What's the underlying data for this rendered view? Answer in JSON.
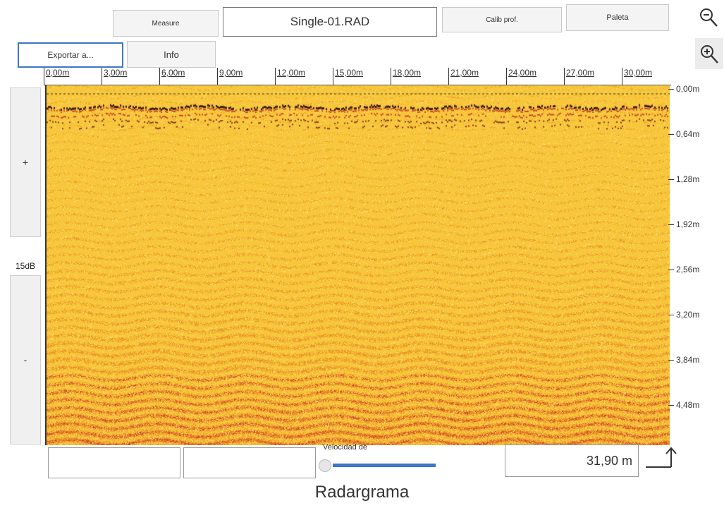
{
  "toolbar": {
    "measure_label": "Measure",
    "filename": "Single-01.RAD",
    "calib_label": "Calib prof.",
    "paleta_label": "Paleta",
    "export_label": "Exportar a...",
    "info_label": "Info"
  },
  "zoom": {
    "out_icon": "zoom-out-icon",
    "in_icon": "zoom-in-icon"
  },
  "x_axis": {
    "ticks": [
      "0,00m",
      "3,00m",
      "6,00m",
      "9,00m",
      "12,00m",
      "15,00m",
      "18,00m",
      "21,00m",
      "24,00m",
      "27,00m",
      "30,00m"
    ]
  },
  "y_axis": {
    "ticks": [
      "0,00m",
      "0,64m",
      "1,28m",
      "1,92m",
      "2,56m",
      "3,20m",
      "3,84m",
      "4,48m"
    ]
  },
  "gain": {
    "plus_label": "+",
    "value": "15dB",
    "minus_label": "-"
  },
  "bottom": {
    "velocity_label": "Velocidad de",
    "distance_value": "31,90 m",
    "arrow_icon": "corner-up-arrow-icon"
  },
  "caption": "Radargrama",
  "colors": {
    "background": "#f7c63a",
    "band_dark": "#3a1a10",
    "band_red": "#c8462a",
    "accent_blue": "#3b76c8"
  }
}
